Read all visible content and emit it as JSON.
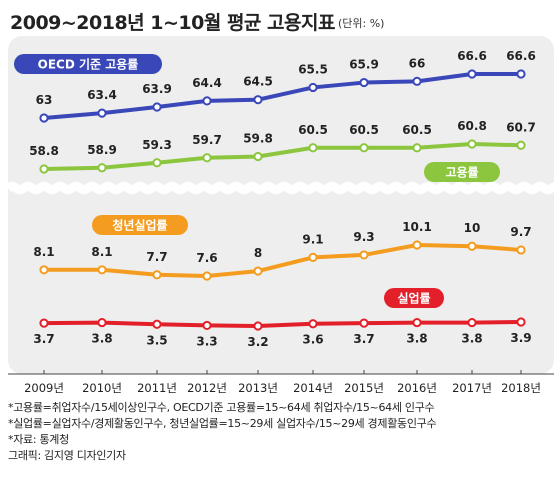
{
  "header": {
    "title": "2009~2018년 1~10월 평균 고용지표",
    "unit": "(단위: %)"
  },
  "chart_data": {
    "type": "line",
    "categories": [
      "2009년",
      "2010년",
      "2011년",
      "2012년",
      "2013년",
      "2014년",
      "2015년",
      "2016년",
      "2017년",
      "2018년"
    ],
    "series": [
      {
        "name": "OECD 기준 고용률",
        "values": [
          63,
          63.4,
          63.9,
          64.4,
          64.5,
          65.5,
          65.9,
          66,
          66.6,
          66.6
        ],
        "labels": [
          "63",
          "63.4",
          "63.9",
          "64.4",
          "64.5",
          "65.5",
          "65.9",
          "66",
          "66.6",
          "66.6"
        ],
        "color": "#3a47b8"
      },
      {
        "name": "고용률",
        "values": [
          58.8,
          58.9,
          59.3,
          59.7,
          59.8,
          60.5,
          60.5,
          60.5,
          60.8,
          60.7
        ],
        "labels": [
          "58.8",
          "58.9",
          "59.3",
          "59.7",
          "59.8",
          "60.5",
          "60.5",
          "60.5",
          "60.8",
          "60.7"
        ],
        "color": "#8cc63f"
      },
      {
        "name": "청년실업률",
        "values": [
          8.1,
          8.1,
          7.7,
          7.6,
          8,
          9.1,
          9.3,
          10.1,
          10,
          9.7
        ],
        "labels": [
          "8.1",
          "8.1",
          "7.7",
          "7.6",
          "8",
          "9.1",
          "9.3",
          "10.1",
          "10",
          "9.7"
        ],
        "color": "#f39c1f"
      },
      {
        "name": "실업률",
        "values": [
          3.7,
          3.8,
          3.5,
          3.3,
          3.2,
          3.6,
          3.7,
          3.8,
          3.8,
          3.9
        ],
        "labels": [
          "3.7",
          "3.8",
          "3.5",
          "3.3",
          "3.2",
          "3.6",
          "3.7",
          "3.8",
          "3.8",
          "3.9"
        ],
        "color": "#e3202a"
      }
    ],
    "axis_break": true,
    "grid": false
  },
  "notes": [
    "*고용률=취업자수/15세이상인구수, OECD기준 고용률=15~64세 취업자수/15~64세 인구수",
    "*실업률=실업자수/경제활동인구수, 청년실업률=15~29세 실업자수/15~29세 경제활동인구수",
    "*자료: 통계청",
    "그래픽: 김지영 디자인기자"
  ]
}
